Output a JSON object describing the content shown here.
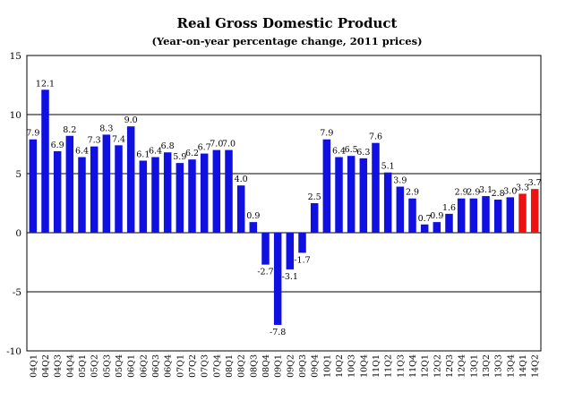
{
  "chart_data": {
    "type": "bar",
    "title": "Real Gross Domestic Product",
    "subtitle": "(Year-on-year percentage change, 2011 prices)",
    "xlabel": "",
    "ylabel": "",
    "ylim": [
      -10,
      15
    ],
    "yticks": [
      -10,
      -5,
      0,
      5,
      10,
      15
    ],
    "grid": true,
    "legend": "none",
    "colors": {
      "actual": "#1010e0",
      "forecast": "#ee1111"
    },
    "categories": [
      "04Q1",
      "04Q2",
      "04Q3",
      "04Q4",
      "05Q1",
      "05Q2",
      "05Q3",
      "05Q4",
      "06Q1",
      "06Q2",
      "06Q3",
      "06Q4",
      "07Q1",
      "07Q2",
      "07Q3",
      "07Q4",
      "08Q1",
      "08Q2",
      "08Q3",
      "08Q4",
      "09Q1",
      "09Q2",
      "09Q3",
      "09Q4",
      "10Q1",
      "10Q2",
      "10Q3",
      "10Q4",
      "11Q1",
      "11Q2",
      "11Q3",
      "11Q4",
      "12Q1",
      "12Q2",
      "12Q3",
      "12Q4",
      "13Q1",
      "13Q2",
      "13Q3",
      "13Q4",
      "14Q1",
      "14Q2"
    ],
    "values": [
      7.9,
      12.1,
      6.9,
      8.2,
      6.4,
      7.3,
      8.3,
      7.4,
      9.0,
      6.1,
      6.4,
      6.8,
      5.9,
      6.2,
      6.7,
      7.0,
      7.0,
      4.0,
      0.9,
      -2.7,
      -7.8,
      -3.1,
      -1.7,
      2.5,
      7.9,
      6.4,
      6.5,
      6.3,
      7.6,
      5.1,
      3.9,
      2.9,
      0.7,
      0.9,
      1.6,
      2.9,
      2.9,
      3.1,
      2.8,
      3.0,
      3.3,
      3.7
    ],
    "labels": [
      "7.9",
      "12.1",
      "6.9",
      "8.2",
      "6.4",
      "7.3",
      "8.3",
      "7.4",
      "9.0",
      "6.1",
      "6.4",
      "6.8",
      "5.9",
      "6.2",
      "6.7",
      "7.0",
      "7.0",
      "4.0",
      "0.9",
      "-2.7",
      "-7.8",
      "-3.1",
      "-1.7",
      "2.5",
      "7.9",
      "6.4",
      "6.5",
      "6.3",
      "7.6",
      "5.1",
      "3.9",
      "2.9",
      "0.7",
      "0.9",
      "1.6",
      "2.9",
      "2.9",
      "3.1",
      "2.8",
      "3.0",
      "3.3",
      "3.7"
    ],
    "highlighted_categories": [
      "14Q1",
      "14Q2"
    ]
  }
}
